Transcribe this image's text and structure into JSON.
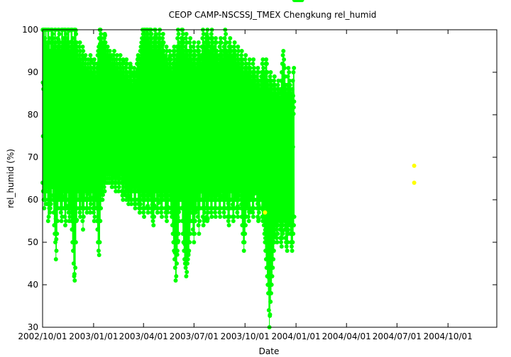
{
  "chart_data": {
    "type": "scatter",
    "title": "CEOP CAMP-NSCSSJ_TMEX Chengkung  rel_humid",
    "xlabel": "Date",
    "ylabel": "rel_humid (%)",
    "x_range": [
      "2002-10-01",
      "2004-12-28"
    ],
    "ylim": [
      30,
      100
    ],
    "y_ticks": [
      30,
      40,
      50,
      60,
      70,
      80,
      90,
      100
    ],
    "x_ticks": [
      "2002/10/01",
      "2003/01/01",
      "2003/04/01",
      "2003/07/01",
      "2003/10/01",
      "2004/01/01",
      "2004/04/01",
      "2004/07/01",
      "2004/10/01"
    ],
    "x_tick_labels": [
      "2002/10/01",
      "2003/01/01",
      "2003/04/01",
      "2003/07/01",
      "2003/10/01",
      "2004/01/01",
      "2004/04/01",
      "2004/07/01",
      "2004/10/01"
    ],
    "grid": false,
    "marker": "filled-circle",
    "connected": true,
    "series": [
      {
        "color": "#00ff00",
        "daily_min": [
          64,
          62,
          60,
          58,
          60,
          60,
          59,
          62,
          63,
          59,
          55,
          56,
          58,
          57,
          58,
          59,
          60,
          63,
          61,
          60,
          57,
          54,
          52,
          50,
          46,
          48,
          52,
          55,
          58,
          60,
          62,
          60,
          58,
          57,
          55,
          56,
          58,
          60,
          62,
          58,
          56,
          54,
          55,
          58,
          60,
          62,
          58,
          57,
          55,
          56,
          58,
          57,
          55,
          53,
          50,
          48,
          45,
          42,
          41,
          44,
          50,
          55,
          58,
          60,
          62,
          60,
          58,
          57,
          56,
          58,
          60,
          58,
          55,
          53,
          56,
          58,
          60,
          62,
          60,
          58,
          57,
          58,
          60,
          62,
          60,
          58,
          57,
          59,
          60,
          62,
          60,
          58,
          57,
          55,
          56,
          58,
          60,
          58,
          55,
          53,
          50,
          48,
          47,
          50,
          55,
          58,
          60,
          62,
          60,
          62,
          64,
          63,
          62,
          64,
          65,
          64,
          66,
          65,
          64,
          66,
          65,
          64,
          66,
          65,
          64,
          63,
          64,
          65,
          64,
          66,
          64,
          63,
          62,
          64,
          66,
          65,
          64,
          62,
          63,
          64,
          65,
          66,
          64,
          62,
          61,
          60,
          62,
          63,
          64,
          62,
          61,
          60,
          62,
          61,
          60,
          59,
          60,
          62,
          61,
          60,
          59,
          60,
          62,
          63,
          62,
          60,
          59,
          58,
          60,
          62,
          63,
          62,
          60,
          59,
          58,
          57,
          58,
          60,
          62,
          61,
          60,
          58,
          57,
          56,
          58,
          60,
          62,
          61,
          60,
          58,
          57,
          58,
          60,
          62,
          61,
          60,
          58,
          57,
          56,
          55,
          54,
          56,
          58,
          60,
          62,
          60,
          58,
          57,
          58,
          60,
          62,
          61,
          60,
          58,
          57,
          56,
          58,
          60,
          62,
          61,
          60,
          58,
          57,
          56,
          55,
          57,
          58,
          60,
          62,
          61,
          60,
          58,
          57,
          56,
          54,
          52,
          50,
          48,
          46,
          44,
          41,
          42,
          45,
          48,
          50,
          52,
          55,
          58,
          60,
          62,
          60,
          58,
          55,
          52,
          50,
          48,
          46,
          45,
          44,
          42,
          43,
          45,
          46,
          47,
          48,
          50,
          52,
          55,
          58,
          57,
          55,
          53,
          52,
          50,
          52,
          55,
          57,
          58,
          60,
          58,
          56,
          54,
          52,
          55,
          58,
          60,
          62,
          60,
          58,
          56,
          54,
          55,
          57,
          58,
          60,
          58,
          56,
          55,
          57,
          58,
          60,
          61,
          60,
          58,
          57,
          56,
          58,
          60,
          61,
          60,
          58,
          57,
          56,
          58,
          60,
          61,
          62,
          60,
          58,
          57,
          56,
          58,
          60,
          62,
          61,
          60,
          58,
          57,
          56,
          58,
          60,
          61,
          60,
          58,
          56,
          55,
          54,
          56,
          58,
          60,
          62,
          60,
          58,
          56,
          55,
          56,
          58,
          60,
          61,
          60,
          58,
          57,
          56,
          58,
          60,
          61,
          62,
          60,
          58,
          56,
          54,
          52,
          50,
          48,
          50,
          52,
          54,
          56,
          58,
          60,
          58,
          56,
          55,
          57,
          58,
          60,
          61,
          60,
          58,
          57,
          56,
          58,
          60,
          62,
          63,
          62,
          60,
          58,
          56,
          55,
          57,
          58,
          60,
          61,
          60,
          58,
          56,
          55,
          56,
          54,
          52,
          50,
          48,
          46,
          44,
          42,
          40,
          38,
          34,
          30,
          33,
          36,
          38,
          40,
          42,
          44,
          46,
          48,
          50,
          52,
          54,
          53,
          51,
          50,
          52,
          54,
          56,
          55,
          53,
          51,
          50,
          49,
          51,
          52,
          54,
          56,
          55,
          53,
          51,
          50,
          49,
          48,
          50,
          52,
          54,
          55,
          54,
          52,
          50,
          49,
          48,
          50,
          52,
          54,
          56,
          58,
          57,
          55,
          53,
          52,
          54,
          56,
          58,
          60,
          61,
          60,
          58,
          56
        ],
        "daily_max": [
          100,
          100,
          100,
          100,
          98,
          100,
          100,
          96,
          97,
          100,
          100,
          100,
          98,
          95,
          97,
          100,
          100,
          100,
          99,
          98,
          96,
          97,
          100,
          100,
          97,
          95,
          96,
          98,
          100,
          100,
          99,
          97,
          95,
          96,
          100,
          100,
          100,
          98,
          97,
          100,
          100,
          100,
          99,
          97,
          98,
          100,
          100,
          100,
          97,
          95,
          96,
          100,
          100,
          100,
          98,
          96,
          97,
          100,
          100,
          100,
          99,
          97,
          96,
          95,
          93,
          94,
          96,
          97,
          95,
          93,
          92,
          94,
          96,
          95,
          93,
          91,
          92,
          94,
          93,
          91,
          90,
          92,
          93,
          91,
          90,
          92,
          94,
          93,
          91,
          90,
          89,
          91,
          92,
          93,
          92,
          90,
          89,
          91,
          92,
          94,
          95,
          96,
          98,
          100,
          100,
          99,
          98,
          97,
          96,
          95,
          97,
          98,
          99,
          97,
          96,
          95,
          94,
          96,
          95,
          94,
          93,
          95,
          94,
          93,
          92,
          94,
          93,
          92,
          94,
          95,
          93,
          92,
          91,
          93,
          94,
          92,
          91,
          90,
          92,
          93,
          94,
          92,
          91,
          90,
          92,
          93,
          91,
          90,
          89,
          91,
          92,
          93,
          92,
          90,
          89,
          88,
          90,
          91,
          92,
          91,
          90,
          88,
          87,
          89,
          90,
          91,
          90,
          89,
          88,
          90,
          92,
          93,
          94,
          92,
          91,
          93,
          95,
          96,
          97,
          98,
          100,
          99,
          98,
          100,
          100,
          99,
          98,
          100,
          100,
          100,
          99,
          98,
          97,
          100,
          100,
          100,
          99,
          98,
          96,
          95,
          97,
          98,
          100,
          100,
          99,
          98,
          96,
          95,
          97,
          98,
          99,
          100,
          98,
          96,
          95,
          97,
          98,
          99,
          97,
          95,
          93,
          92,
          94,
          96,
          95,
          93,
          92,
          91,
          93,
          95,
          94,
          93,
          91,
          90,
          92,
          94,
          95,
          96,
          95,
          93,
          92,
          94,
          96,
          98,
          100,
          99,
          97,
          96,
          95,
          97,
          98,
          100,
          100,
          99,
          97,
          95,
          94,
          96,
          98,
          99,
          97,
          95,
          94,
          93,
          95,
          97,
          98,
          96,
          95,
          93,
          92,
          94,
          96,
          97,
          95,
          94,
          92,
          91,
          93,
          95,
          96,
          97,
          95,
          94,
          93,
          92,
          94,
          96,
          98,
          100,
          99,
          97,
          96,
          95,
          97,
          98,
          99,
          100,
          98,
          97,
          95,
          94,
          96,
          98,
          99,
          100,
          98,
          97,
          95,
          94,
          96,
          97,
          98,
          97,
          95,
          94,
          93,
          92,
          94,
          96,
          97,
          98,
          97,
          95,
          94,
          93,
          95,
          96,
          98,
          100,
          99,
          97,
          95,
          94,
          93,
          95,
          96,
          97,
          98,
          96,
          95,
          93,
          92,
          94,
          95,
          96,
          97,
          95,
          94,
          93,
          92,
          94,
          96,
          95,
          93,
          92,
          91,
          93,
          94,
          95,
          93,
          92,
          90,
          89,
          91,
          93,
          94,
          92,
          91,
          90,
          89,
          91,
          92,
          93,
          91,
          90,
          89,
          88,
          90,
          92,
          93,
          91,
          90,
          89,
          88,
          87,
          89,
          90,
          91,
          90,
          88,
          87,
          86,
          88,
          89,
          90,
          92,
          93,
          91,
          90,
          89,
          90,
          92,
          93,
          92,
          90,
          88,
          87,
          86,
          88,
          89,
          90,
          88,
          87,
          86,
          85,
          87,
          88,
          89,
          87,
          86,
          85,
          84,
          86,
          87,
          88,
          86,
          85,
          84,
          86,
          88,
          90,
          92,
          94,
          95,
          93,
          91,
          89,
          87,
          86,
          85,
          87,
          89,
          91,
          90,
          88,
          87,
          86,
          85,
          84,
          86,
          88,
          90,
          91
        ]
      },
      {
        "color": "#ffff00",
        "points": [
          {
            "x": "2003-11-06",
            "y": 57
          },
          {
            "x": "2004-08-01",
            "y": 68
          },
          {
            "x": "2004-08-01",
            "y": 64
          }
        ]
      }
    ]
  }
}
